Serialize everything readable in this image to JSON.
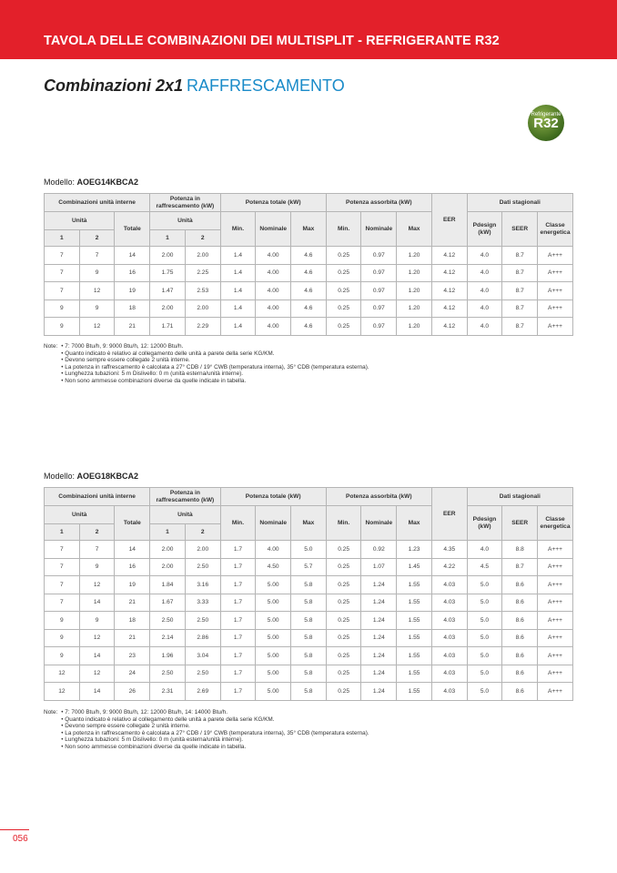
{
  "header": {
    "title": "TAVOLA DELLE COMBINAZIONI DEI MULTISPLIT - REFRIGERANTE R32"
  },
  "section": {
    "title_bold": "Combinazioni 2x1",
    "title_accent": "RAFFRESCAMENTO"
  },
  "badge": {
    "small": "Refrigerante",
    "big": "R32",
    "color": "#4d7a22"
  },
  "colors": {
    "brand": "#e3202a",
    "accent": "#1a8bc9"
  },
  "table_headers": {
    "comb": "Combinazioni unità interne",
    "pot": "Potenza in raffrescamento (kW)",
    "tot": "Potenza totale (kW)",
    "ass": "Potenza assorbita (kW)",
    "eer": "EER",
    "dati": "Dati stagionali",
    "unita": "Unità",
    "totale": "Totale",
    "u1": "1",
    "u2": "2",
    "min": "Min.",
    "nom": "Nominale",
    "max": "Max",
    "pdesign": "Pdesign (kW)",
    "seer": "SEER",
    "classe": "Classe energetica"
  },
  "tables": [
    {
      "model_label": "Modello:",
      "model": "AOEG14KBCA2",
      "rows": [
        [
          "7",
          "7",
          "14",
          "2.00",
          "2.00",
          "1.4",
          "4.00",
          "4.6",
          "0.25",
          "0.97",
          "1.20",
          "4.12",
          "4.0",
          "8.7",
          "A+++"
        ],
        [
          "7",
          "9",
          "16",
          "1.75",
          "2.25",
          "1.4",
          "4.00",
          "4.6",
          "0.25",
          "0.97",
          "1.20",
          "4.12",
          "4.0",
          "8.7",
          "A+++"
        ],
        [
          "7",
          "12",
          "19",
          "1.47",
          "2.53",
          "1.4",
          "4.00",
          "4.6",
          "0.25",
          "0.97",
          "1.20",
          "4.12",
          "4.0",
          "8.7",
          "A+++"
        ],
        [
          "9",
          "9",
          "18",
          "2.00",
          "2.00",
          "1.4",
          "4.00",
          "4.6",
          "0.25",
          "0.97",
          "1.20",
          "4.12",
          "4.0",
          "8.7",
          "A+++"
        ],
        [
          "9",
          "12",
          "21",
          "1.71",
          "2.29",
          "1.4",
          "4.00",
          "4.6",
          "0.25",
          "0.97",
          "1.20",
          "4.12",
          "4.0",
          "8.7",
          "A+++"
        ]
      ],
      "notes_label": "Note:",
      "notes": [
        "• 7: 7000 Btu/h, 9: 9000 Btu/h, 12: 12000 Btu/h.",
        "• Quanto indicato è relativo al collegamento delle unità a parete della serie KG/KM.",
        "• Devono sempre essere collegate 2 unità interne.",
        "• La potenza in raffrescamento è calcolata a 27° CDB / 19° CWB (temperatura interna), 35° CDB (temperatura esterna).",
        "• Lunghezza tubazioni: 5 m Dislivello: 0 m (unità esterna/unità interne).",
        "• Non sono ammesse combinazioni diverse da quelle indicate in tabella."
      ]
    },
    {
      "model_label": "Modello:",
      "model": "AOEG18KBCA2",
      "rows": [
        [
          "7",
          "7",
          "14",
          "2.00",
          "2.00",
          "1.7",
          "4.00",
          "5.0",
          "0.25",
          "0.92",
          "1.23",
          "4.35",
          "4.0",
          "8.8",
          "A+++"
        ],
        [
          "7",
          "9",
          "16",
          "2.00",
          "2.50",
          "1.7",
          "4.50",
          "5.7",
          "0.25",
          "1.07",
          "1.45",
          "4.22",
          "4.5",
          "8.7",
          "A+++"
        ],
        [
          "7",
          "12",
          "19",
          "1.84",
          "3.16",
          "1.7",
          "5.00",
          "5.8",
          "0.25",
          "1.24",
          "1.55",
          "4.03",
          "5.0",
          "8.6",
          "A+++"
        ],
        [
          "7",
          "14",
          "21",
          "1.67",
          "3.33",
          "1.7",
          "5.00",
          "5.8",
          "0.25",
          "1.24",
          "1.55",
          "4.03",
          "5.0",
          "8.6",
          "A+++"
        ],
        [
          "9",
          "9",
          "18",
          "2.50",
          "2.50",
          "1.7",
          "5.00",
          "5.8",
          "0.25",
          "1.24",
          "1.55",
          "4.03",
          "5.0",
          "8.6",
          "A+++"
        ],
        [
          "9",
          "12",
          "21",
          "2.14",
          "2.86",
          "1.7",
          "5.00",
          "5.8",
          "0.25",
          "1.24",
          "1.55",
          "4.03",
          "5.0",
          "8.6",
          "A+++"
        ],
        [
          "9",
          "14",
          "23",
          "1.96",
          "3.04",
          "1.7",
          "5.00",
          "5.8",
          "0.25",
          "1.24",
          "1.55",
          "4.03",
          "5.0",
          "8.6",
          "A+++"
        ],
        [
          "12",
          "12",
          "24",
          "2.50",
          "2.50",
          "1.7",
          "5.00",
          "5.8",
          "0.25",
          "1.24",
          "1.55",
          "4.03",
          "5.0",
          "8.6",
          "A+++"
        ],
        [
          "12",
          "14",
          "26",
          "2.31",
          "2.69",
          "1.7",
          "5.00",
          "5.8",
          "0.25",
          "1.24",
          "1.55",
          "4.03",
          "5.0",
          "8.6",
          "A+++"
        ]
      ],
      "notes_label": "Note:",
      "notes": [
        "• 7: 7000 Btu/h, 9: 9000 Btu/h, 12: 12000 Btu/h, 14: 14000 Btu/h.",
        "• Quanto indicato è relativo al collegamento delle unità a parete della serie KG/KM.",
        "• Devono sempre essere collegate 2 unità interne.",
        "• La potenza in raffrescamento è calcolata a 27° CDB / 19° CWB (temperatura interna), 35° CDB (temperatura esterna).",
        "• Lunghezza tubazioni: 5 m Dislivello: 0 m (unità esterna/unità interne).",
        "• Non sono ammesse combinazioni diverse da quelle indicate in tabella."
      ]
    }
  ],
  "page_number": "056"
}
